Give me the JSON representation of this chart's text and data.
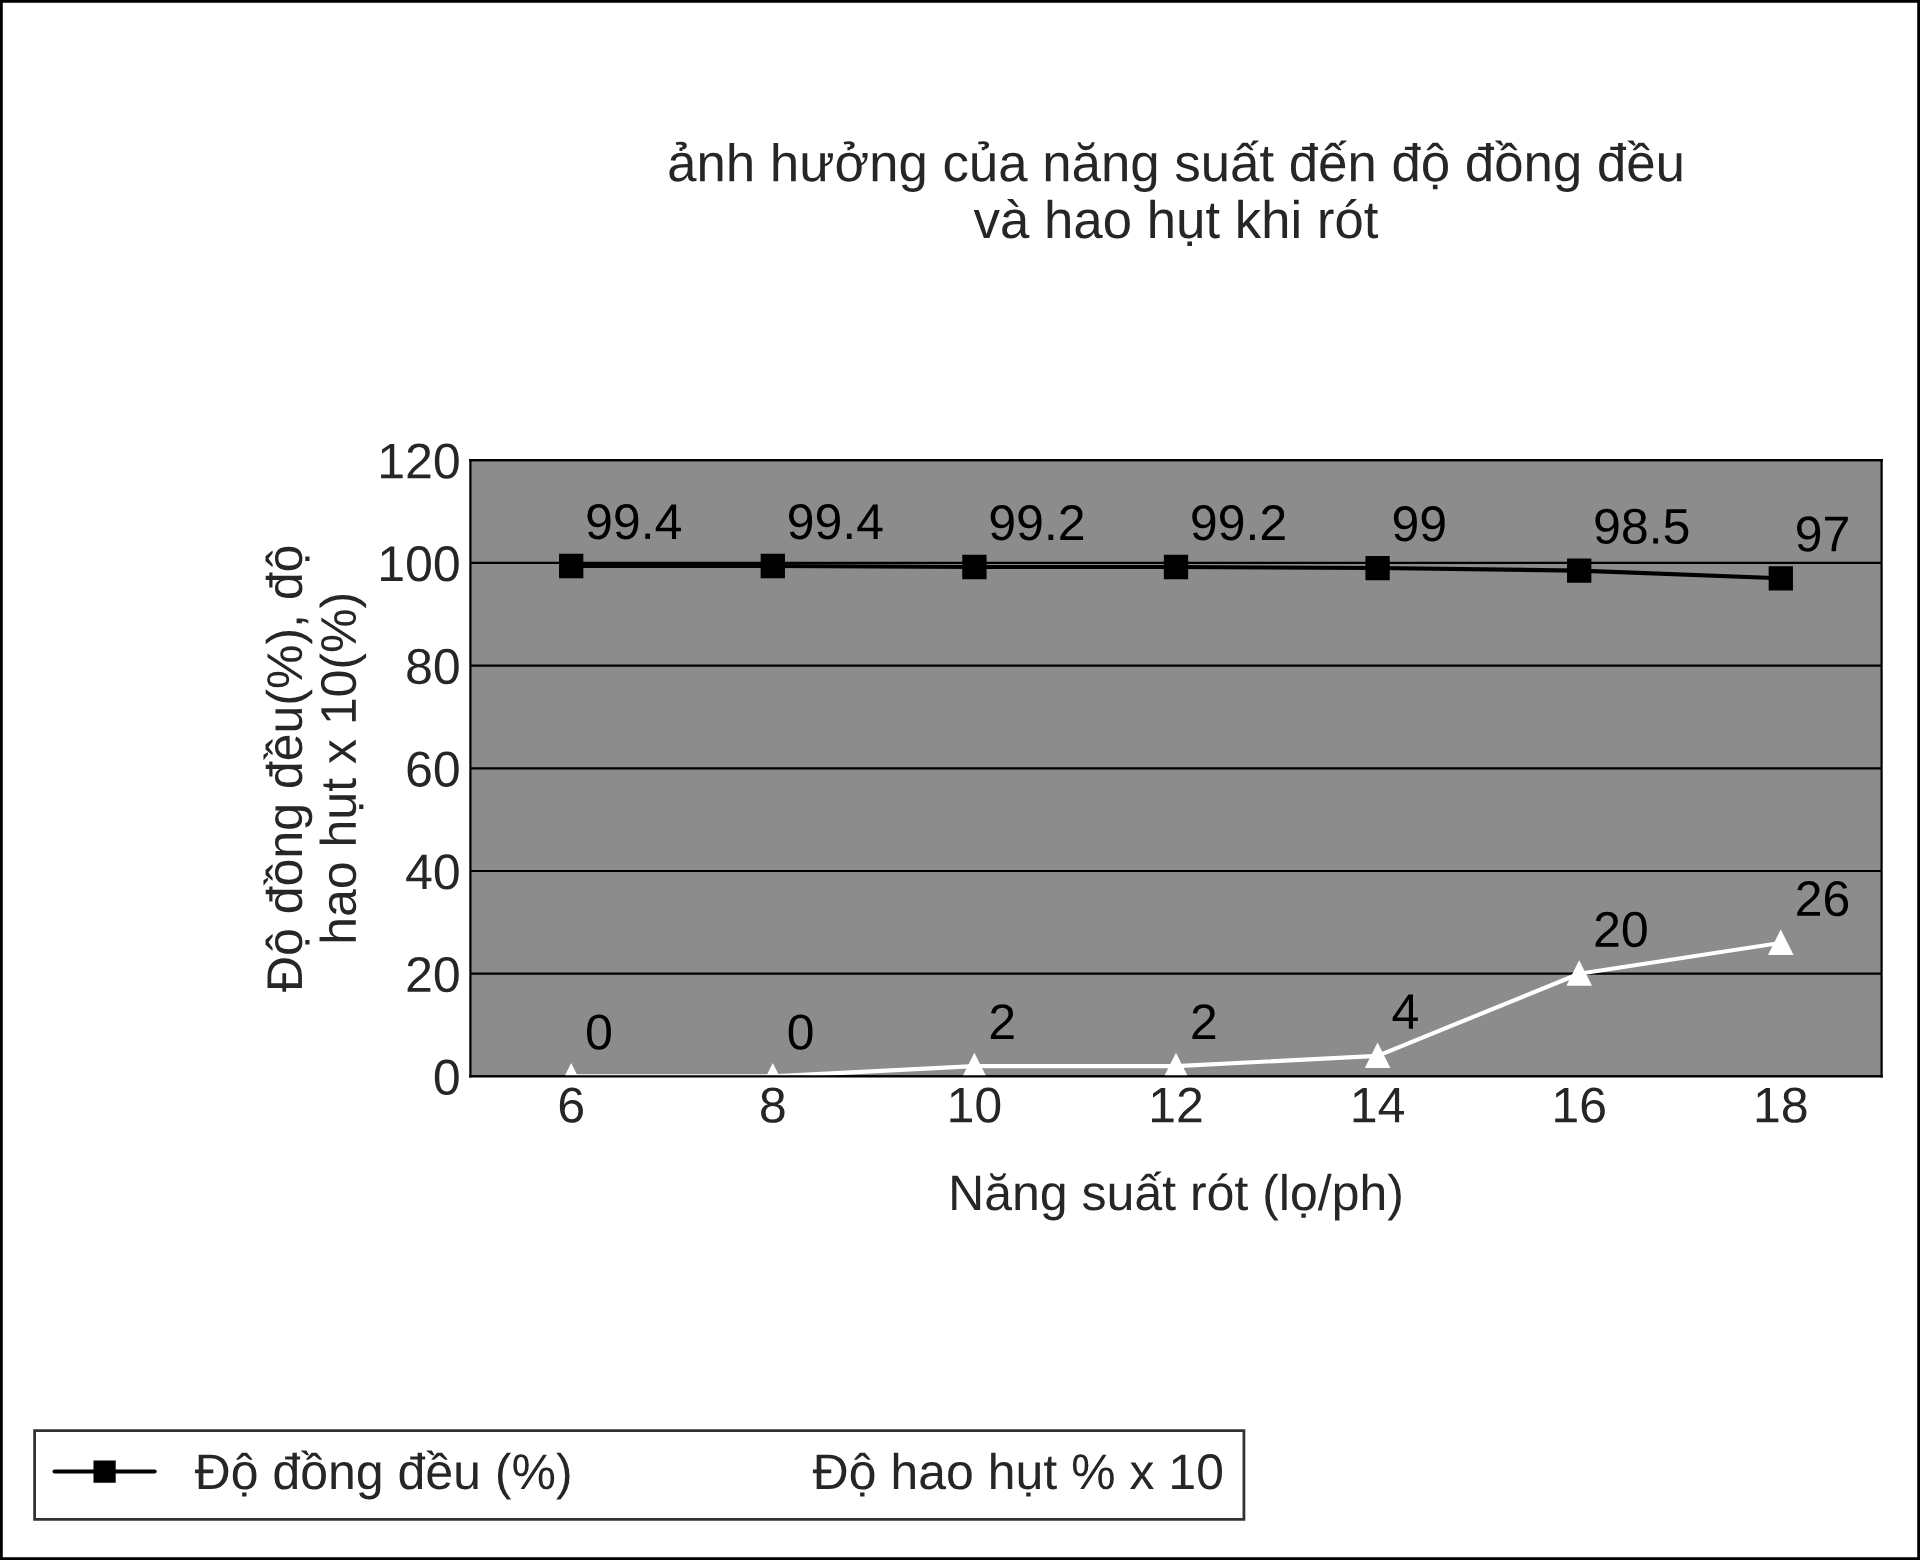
{
  "chart_data": {
    "type": "line",
    "title": "ảnh hưởng của năng suất đến độ đồng đều\nvà hao hụt khi rót",
    "xlabel": "Năng suất rót (lọ/ph)",
    "ylabel": "Độ đồng đều(%), độ\nhao hụt x 10(%)",
    "categories": [
      "6",
      "8",
      "10",
      "12",
      "14",
      "16",
      "18"
    ],
    "series": [
      {
        "name": "Độ đồng đều (%)",
        "color": "#000000",
        "marker": "square",
        "values": [
          99.4,
          99.4,
          99.2,
          99.2,
          99,
          98.5,
          97
        ]
      },
      {
        "name": "Độ hao hụt % x 10",
        "color": "#ffffff",
        "marker": "triangle",
        "values": [
          0,
          0,
          2,
          2,
          4,
          20,
          26
        ]
      }
    ],
    "ylim": [
      0,
      120
    ],
    "yticks": [
      0,
      20,
      40,
      60,
      80,
      100,
      120
    ],
    "grid": "y",
    "legend": "bottom",
    "data_labels": true
  }
}
